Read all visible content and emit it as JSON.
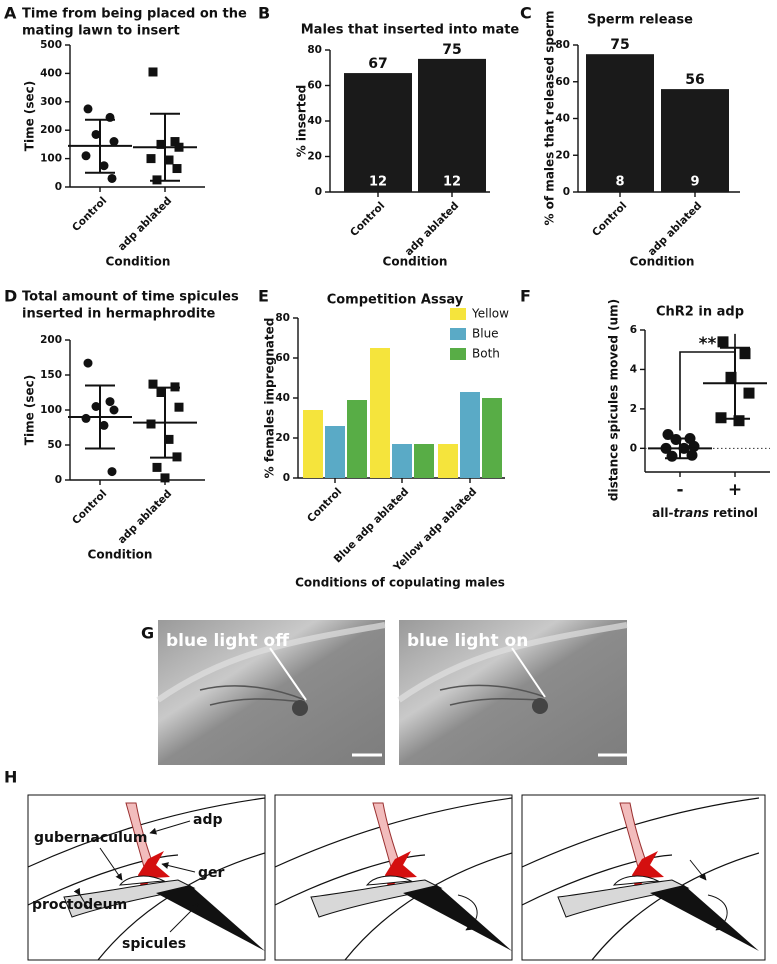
{
  "chart_data": [
    {
      "panel": "A",
      "type": "dot",
      "title": [
        "Time from being placed on the",
        "mating lawn to insert"
      ],
      "y_label": "Time (sec)",
      "x_label": "Condition",
      "categories": [
        "Control",
        "adp ablated"
      ],
      "markers": [
        "circle",
        "square"
      ],
      "points": [
        [
          275,
          245,
          185,
          160,
          110,
          75,
          30
        ],
        [
          405,
          160,
          150,
          140,
          100,
          95,
          65,
          25
        ]
      ],
      "means": [
        145,
        140
      ],
      "error_low": [
        50,
        22
      ],
      "error_high": [
        237,
        258
      ],
      "ylim": [
        0,
        500
      ],
      "yticks": [
        0,
        100,
        200,
        300,
        400,
        500
      ]
    },
    {
      "panel": "B",
      "type": "bar",
      "title": "Males that inserted into mate",
      "y_label": "% inserted",
      "x_label": "Condition",
      "categories": [
        "Control",
        "adp ablated"
      ],
      "values": [
        67,
        75
      ],
      "n": [
        12,
        12
      ],
      "color": "#1a1a1a",
      "ylim": [
        0,
        80
      ],
      "yticks": [
        0,
        20,
        40,
        60,
        80
      ]
    },
    {
      "panel": "C",
      "type": "bar",
      "title": "Sperm release",
      "y_label": "% of males that released sperm",
      "x_label": "Condition",
      "categories": [
        "Control",
        "adp ablated"
      ],
      "values": [
        75,
        56
      ],
      "n": [
        8,
        9
      ],
      "color": "#1a1a1a",
      "ylim": [
        0,
        80
      ],
      "yticks": [
        0,
        20,
        40,
        60,
        80
      ]
    },
    {
      "panel": "D",
      "type": "dot",
      "title": [
        "Total amount of time spicules",
        "inserted in hermaphrodite"
      ],
      "y_label": "Time (sec)",
      "x_label": "Condition",
      "categories": [
        "Control",
        "adp ablated"
      ],
      "markers": [
        "circle",
        "square"
      ],
      "points": [
        [
          167,
          112,
          105,
          100,
          88,
          78,
          12
        ],
        [
          137,
          133,
          125,
          104,
          80,
          58,
          33,
          18,
          3
        ]
      ],
      "means": [
        90,
        82
      ],
      "error_low": [
        45,
        32
      ],
      "error_high": [
        135,
        132
      ],
      "ylim": [
        0,
        200
      ],
      "yticks": [
        0,
        50,
        100,
        150,
        200
      ]
    },
    {
      "panel": "E",
      "type": "grouped_bar",
      "title": "Competition Assay",
      "y_label": "% females impregnated",
      "x_label": "Conditions of copulating males",
      "categories": [
        "Control",
        "Blue adp ablated",
        "Yellow adp ablated"
      ],
      "series": [
        {
          "name": "Yellow",
          "color": "#f5e43c",
          "values": [
            34,
            65,
            17
          ]
        },
        {
          "name": "Blue",
          "color": "#5aaac6",
          "values": [
            26,
            17,
            43
          ]
        },
        {
          "name": "Both",
          "color": "#58ad46",
          "values": [
            39,
            17,
            40
          ]
        }
      ],
      "legend": "top-right",
      "ylim": [
        0,
        80
      ],
      "yticks": [
        0,
        20,
        40,
        60,
        80
      ]
    },
    {
      "panel": "F",
      "type": "dot",
      "title": "ChR2 in adp",
      "y_label": "distance spicules moved (um)",
      "x_label": [
        "all-",
        "trans",
        " retinol"
      ],
      "categories": [
        "-",
        "+"
      ],
      "markers": [
        "circle",
        "square"
      ],
      "points": [
        [
          0.7,
          0.5,
          0.45,
          0.1,
          0,
          0,
          -0.35,
          -0.4
        ],
        [
          5.4,
          4.8,
          3.6,
          2.8,
          1.55,
          1.4
        ]
      ],
      "means": [
        0,
        3.3
      ],
      "error_low": [
        -0.5,
        1.5
      ],
      "error_high": [
        0.5,
        5.1
      ],
      "hline": 0,
      "significance": "**",
      "ylim": [
        -1.2,
        6
      ],
      "yticks": [
        0,
        2,
        4,
        6
      ]
    }
  ],
  "figure": {
    "panel_G": {
      "letter": "G",
      "labels": [
        "blue light off",
        "blue light on"
      ]
    },
    "panel_H": {
      "letter": "H",
      "labels": {
        "gubernaculum": "gubernaculum",
        "adp": "adp",
        "ger": "ger",
        "proctodeum": "proctodeum",
        "spicules": "spicules"
      }
    }
  }
}
